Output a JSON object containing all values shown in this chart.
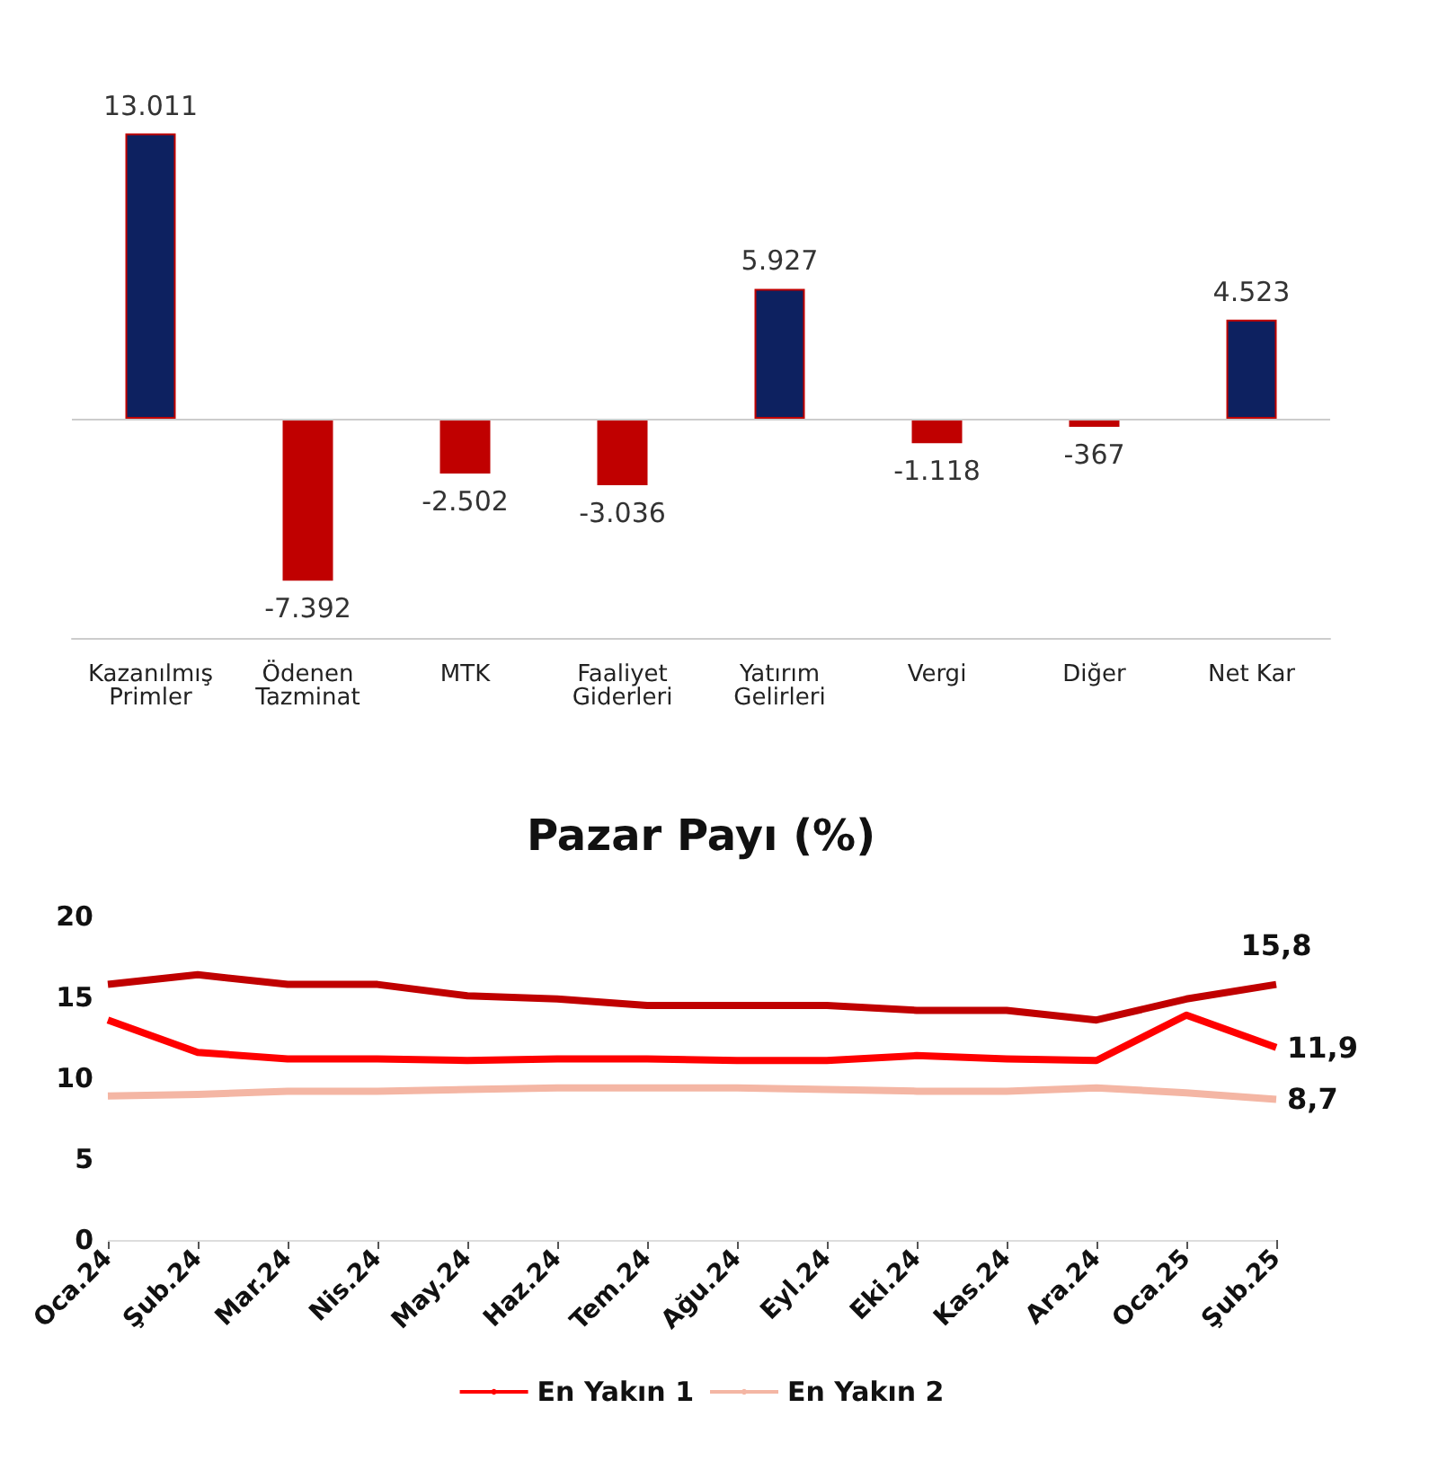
{
  "chart_data": [
    {
      "type": "bar",
      "categories": [
        "Kazanılmış Primler",
        "Ödenen Tazminat",
        "MTK",
        "Faaliyet Giderleri",
        "Yatırım Gelirleri",
        "Vergi",
        "Diğer",
        "Net Kar"
      ],
      "values": [
        13011,
        -7392,
        -2502,
        -3036,
        5927,
        -1118,
        -367,
        4523
      ],
      "colors": [
        "#0d2160",
        "#c00000",
        "#c00000",
        "#c00000",
        "#0d2160",
        "#c00000",
        "#c00000",
        "#0d2160"
      ],
      "value_labels": [
        "13.011",
        "-7.392",
        "-2.502",
        "-3.036",
        "5.927",
        "-1.118",
        "-367",
        "4.523"
      ],
      "tick_labels": "x",
      "grid": false
    },
    {
      "type": "line",
      "title": "Pazar Payı (%)",
      "categories": [
        "Oca.24",
        "Şub.24",
        "Mar.24",
        "Nis.24",
        "May.24",
        "Haz.24",
        "Tem.24",
        "Ağu.24",
        "Eyl.24",
        "Eki.24",
        "Kas.24",
        "Ara.24",
        "Oca.25",
        "Şub.25"
      ],
      "ylim": [
        0,
        20
      ],
      "yticks": [
        0,
        5,
        10,
        15,
        20
      ],
      "grid": false,
      "legend": "bottom",
      "marker": "none",
      "line_style": "solid",
      "series": [
        {
          "color": "#c00000",
          "values": [
            15.8,
            16.4,
            15.8,
            15.8,
            15.1,
            14.9,
            14.5,
            14.5,
            14.5,
            14.2,
            14.2,
            13.6,
            14.9,
            15.8
          ],
          "value_labels": [
            null,
            null,
            null,
            null,
            null,
            null,
            null,
            null,
            null,
            null,
            null,
            null,
            null,
            "15,8"
          ]
        },
        {
          "name": "En Yakın 1",
          "color": "#ff0000",
          "values": [
            13.6,
            11.6,
            11.2,
            11.2,
            11.1,
            11.2,
            11.2,
            11.1,
            11.1,
            11.4,
            11.2,
            11.1,
            13.9,
            11.9
          ],
          "value_labels": [
            null,
            null,
            null,
            null,
            null,
            null,
            null,
            null,
            null,
            null,
            null,
            null,
            null,
            "11,9"
          ]
        },
        {
          "name": "En Yakın 2",
          "color": "#f4b6a4",
          "values": [
            8.9,
            9.0,
            9.2,
            9.2,
            9.3,
            9.4,
            9.4,
            9.4,
            9.3,
            9.2,
            9.2,
            9.4,
            9.1,
            8.7
          ],
          "value_labels": [
            null,
            null,
            null,
            null,
            null,
            null,
            null,
            null,
            null,
            null,
            null,
            null,
            null,
            "8,7"
          ]
        }
      ]
    }
  ]
}
